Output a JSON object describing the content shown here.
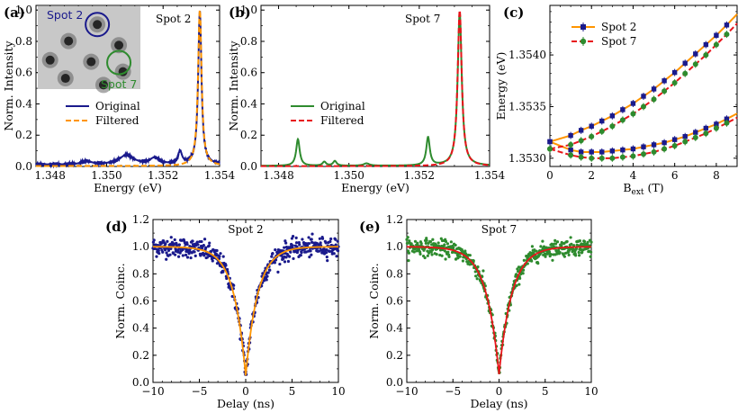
{
  "chart_data": [
    {
      "panel": "a",
      "type": "line",
      "panel_label": "(a)",
      "annotation": "Spot 2",
      "xlabel": "Energy (eV)",
      "ylabel": "Norm. Intensity",
      "xlim": [
        1.3475,
        1.354
      ],
      "ylim": [
        0,
        1.03
      ],
      "xticks": [
        1.348,
        1.35,
        1.352,
        1.354
      ],
      "xtick_labels": [
        "1.348",
        "1.350",
        "1.352",
        "1.354"
      ],
      "yticks": [
        0,
        0.2,
        0.4,
        0.6,
        0.8,
        1.0
      ],
      "ytick_labels": [
        "0.0",
        "0.2",
        "0.4",
        "0.6",
        "0.8",
        "1.0"
      ],
      "inset": {
        "labels": [
          "Spot 2",
          "Spot 7"
        ],
        "label_colors": [
          "#1a1a8c",
          "#2e8b2e"
        ]
      },
      "series": [
        {
          "name": "Original",
          "color": "#1a1a8c",
          "dash": "solid",
          "peaks": [
            [
              1.3533,
              0.98,
              7e-05
            ],
            [
              1.3526,
              0.08,
              8e-05
            ],
            [
              1.3507,
              0.06,
              0.0003
            ],
            [
              1.3517,
              0.04,
              0.0002
            ],
            [
              1.3493,
              0.02,
              0.0002
            ]
          ],
          "baseline": 0.012
        },
        {
          "name": "Filtered",
          "color": "#ff9500",
          "dash": "dashed",
          "peaks": [
            [
              1.3533,
              1.0,
              7.5e-05
            ]
          ],
          "baseline": 0.003
        }
      ],
      "legend": [
        "Original",
        "Filtered"
      ]
    },
    {
      "panel": "b",
      "type": "line",
      "panel_label": "(b)",
      "annotation": "Spot 7",
      "xlabel": "Energy (eV)",
      "ylabel": "Norm. Intensity",
      "xlim": [
        1.3475,
        1.354
      ],
      "ylim": [
        0,
        1.03
      ],
      "xticks": [
        1.348,
        1.35,
        1.352,
        1.354
      ],
      "xtick_labels": [
        "1.348",
        "1.350",
        "1.352",
        "1.354"
      ],
      "yticks": [
        0,
        0.2,
        0.4,
        0.6,
        0.8,
        1.0
      ],
      "ytick_labels": [
        "0.0",
        "0.2",
        "0.4",
        "0.6",
        "0.8",
        "1.0"
      ],
      "series": [
        {
          "name": "Original",
          "color": "#2e8b2e",
          "dash": "solid",
          "peaks": [
            [
              1.35315,
              0.98,
              7e-05
            ],
            [
              1.35225,
              0.18,
              6e-05
            ],
            [
              1.34855,
              0.17,
              6e-05
            ],
            [
              1.3493,
              0.025,
              6e-05
            ],
            [
              1.3496,
              0.03,
              6e-05
            ],
            [
              1.3505,
              0.015,
              0.0001
            ]
          ],
          "baseline": 0.004
        },
        {
          "name": "Filtered",
          "color": "#e8141a",
          "dash": "dashed",
          "peaks": [
            [
              1.35315,
              1.0,
              7e-05
            ]
          ],
          "baseline": 0.002
        }
      ],
      "legend": [
        "Original",
        "Filtered"
      ]
    },
    {
      "panel": "c",
      "type": "scatter",
      "panel_label": "(c)",
      "xlabel_main": "B",
      "xlabel_sub": "ext",
      "xlabel_unit": " (T)",
      "ylabel": "Energy (eV)",
      "xlim": [
        0,
        9
      ],
      "ylim": [
        1.35292,
        1.35448
      ],
      "xticks": [
        0,
        2,
        4,
        6,
        8
      ],
      "xtick_labels": [
        "0",
        "2",
        "4",
        "6",
        "8"
      ],
      "yticks": [
        1.353,
        1.3535,
        1.354
      ],
      "ytick_labels": [
        "1.3530",
        "1.3535",
        "1.3540"
      ],
      "x": [
        0,
        1,
        1.5,
        2,
        2.5,
        3,
        3.5,
        4,
        4.5,
        5,
        5.5,
        6,
        6.5,
        7,
        7.5,
        8,
        8.5
      ],
      "series": [
        {
          "name": "Spot 2",
          "color": "#1a1a8c",
          "fit_color": "#ff9500",
          "marker": "square",
          "upper": [
            1.35316,
            1.35322,
            1.35327,
            1.35331,
            1.35336,
            1.35341,
            1.35347,
            1.35353,
            1.3536,
            1.35367,
            1.35375,
            1.35383,
            1.35392,
            1.35401,
            1.3541,
            1.35419,
            1.35429
          ],
          "lower": [
            1.35316,
            1.35308,
            1.35306,
            1.35306,
            1.35306,
            1.35307,
            1.35308,
            1.35309,
            1.35311,
            1.35313,
            1.35315,
            1.35318,
            1.35321,
            1.35325,
            1.35329,
            1.35333,
            1.35338
          ]
        },
        {
          "name": "Spot 7",
          "color": "#2e8b2e",
          "fit_color": "#e8141a",
          "marker": "circle",
          "upper": [
            1.35309,
            1.35313,
            1.35317,
            1.35321,
            1.35326,
            1.35331,
            1.35337,
            1.35343,
            1.3535,
            1.35357,
            1.35365,
            1.35373,
            1.35382,
            1.35391,
            1.354,
            1.3541,
            1.3542
          ],
          "lower": [
            1.35309,
            1.35303,
            1.35301,
            1.353,
            1.353,
            1.353,
            1.35301,
            1.35302,
            1.35304,
            1.35306,
            1.35309,
            1.35312,
            1.35316,
            1.3532,
            1.35324,
            1.35329,
            1.35334
          ]
        }
      ],
      "legend": [
        "Spot 2",
        "Spot 7"
      ]
    },
    {
      "panel": "d",
      "type": "scatter",
      "panel_label": "(d)",
      "annotation": "Spot 2",
      "xlabel": "Delay (ns)",
      "ylabel": "Norm. Coinc.",
      "xlim": [
        -10,
        10
      ],
      "ylim": [
        0,
        1.2
      ],
      "xticks": [
        -10,
        -5,
        0,
        5,
        10
      ],
      "xtick_labels": [
        "−10",
        "−5",
        "0",
        "5",
        "10"
      ],
      "yticks": [
        0,
        0.2,
        0.4,
        0.6,
        0.8,
        1.0,
        1.2
      ],
      "ytick_labels": [
        "0.0",
        "0.2",
        "0.4",
        "0.6",
        "0.8",
        "1.0",
        "1.2"
      ],
      "point_color": "#1a1a8c",
      "fit_color": "#ff9500",
      "g2_zero": 0.05,
      "decay_ns": 1.3,
      "noise": 0.035
    },
    {
      "panel": "e",
      "type": "scatter",
      "panel_label": "(e)",
      "annotation": "Spot 7",
      "xlabel": "Delay (ns)",
      "ylabel": "Norm. Coinc.",
      "xlim": [
        -10,
        10
      ],
      "ylim": [
        0,
        1.2
      ],
      "xticks": [
        -10,
        -5,
        0,
        5,
        10
      ],
      "xtick_labels": [
        "−10",
        "−5",
        "0",
        "5",
        "10"
      ],
      "yticks": [
        0,
        0.2,
        0.4,
        0.6,
        0.8,
        1.0,
        1.2
      ],
      "ytick_labels": [
        "0.0",
        "0.2",
        "0.4",
        "0.6",
        "0.8",
        "1.0",
        "1.2"
      ],
      "point_color": "#2e8b2e",
      "fit_color": "#e8141a",
      "g2_zero": 0.06,
      "decay_ns": 1.4,
      "noise": 0.03
    }
  ]
}
